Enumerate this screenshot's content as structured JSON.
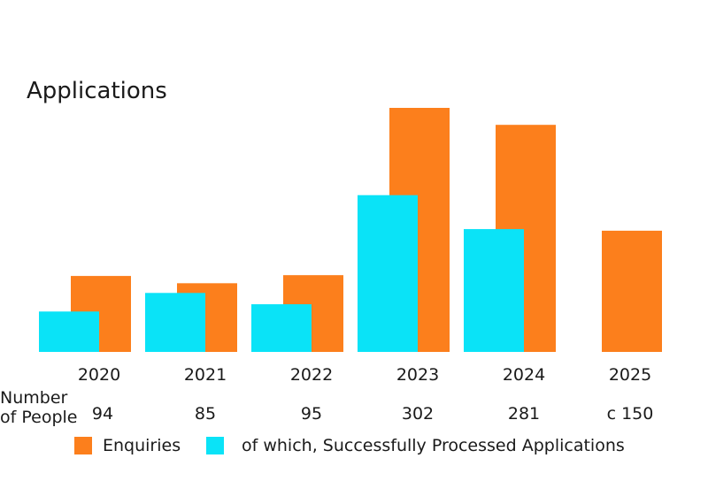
{
  "chart_data": {
    "type": "bar",
    "title": "Applications",
    "categories": [
      "2020",
      "2021",
      "2022",
      "2023",
      "2024",
      "2025"
    ],
    "series": [
      {
        "name": "Enquiries",
        "color": "#fc7f1c",
        "values": [
          94,
          85,
          95,
          302,
          281,
          150
        ]
      },
      {
        "name": "of which, Successfully Processed Applications",
        "color": "#0ae3f7",
        "values": [
          50,
          73,
          59,
          194,
          152,
          null
        ]
      }
    ],
    "row_label_line1": "Number",
    "row_label_line2": "of People",
    "value_labels": [
      "94",
      "85",
      "95",
      "302",
      "281",
      "c 150"
    ],
    "ylim": [
      0,
      310
    ],
    "grid": false,
    "legend_position": "bottom"
  }
}
